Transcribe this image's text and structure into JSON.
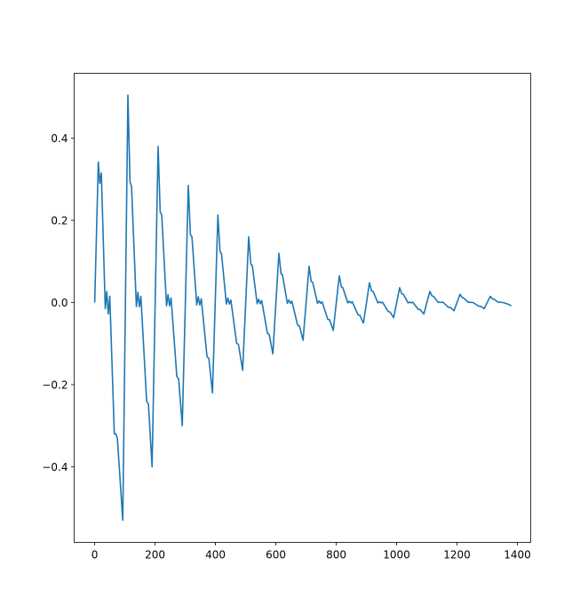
{
  "chart_data": {
    "type": "line",
    "title": "",
    "xlabel": "",
    "ylabel": "",
    "xlim": [
      -68,
      1444
    ],
    "ylim": [
      -0.584,
      0.558
    ],
    "grid": false,
    "xticks": [
      0,
      200,
      400,
      600,
      800,
      1000,
      1200,
      1400
    ],
    "xtick_labels": [
      "0",
      "200",
      "400",
      "600",
      "800",
      "1000",
      "1200",
      "1400"
    ],
    "yticks": [
      -0.4,
      -0.2,
      0.0,
      0.2,
      0.4
    ],
    "ytick_labels": [
      "−0.4",
      "−0.2",
      "0.0",
      "0.2",
      "0.4"
    ],
    "series": [
      {
        "color": "#1f77b4",
        "x": [
          0,
          12,
          17,
          22,
          35,
          40,
          45,
          50,
          65,
          70,
          75,
          93,
          110,
          117,
          122,
          138,
          143,
          148,
          153,
          172,
          178,
          190,
          210,
          217,
          222,
          238,
          243,
          248,
          253,
          272,
          278,
          290,
          310,
          317,
          322,
          338,
          343,
          348,
          353,
          372,
          378,
          390,
          408,
          415,
          420,
          436,
          441,
          446,
          451,
          470,
          476,
          490,
          510,
          517,
          522,
          538,
          543,
          548,
          553,
          572,
          578,
          590,
          610,
          617,
          622,
          638,
          643,
          648,
          653,
          672,
          678,
          690,
          710,
          717,
          722,
          738,
          743,
          748,
          753,
          772,
          778,
          790,
          810,
          817,
          822,
          838,
          843,
          848,
          853,
          872,
          878,
          890,
          910,
          917,
          922,
          938,
          943,
          948,
          953,
          972,
          978,
          990,
          1010,
          1017,
          1022,
          1038,
          1043,
          1048,
          1053,
          1072,
          1078,
          1090,
          1110,
          1117,
          1122,
          1138,
          1143,
          1148,
          1153,
          1172,
          1178,
          1190,
          1210,
          1217,
          1222,
          1238,
          1243,
          1248,
          1253,
          1272,
          1278,
          1290,
          1310,
          1317,
          1322,
          1338,
          1343,
          1348,
          1353,
          1372,
          1380
        ],
        "y": [
          0,
          0.342,
          0.29,
          0.315,
          -0.015,
          0.027,
          -0.028,
          0.015,
          -0.32,
          -0.32,
          -0.33,
          -0.53,
          0.505,
          0.293,
          0.283,
          -0.01,
          0.025,
          -0.01,
          0.015,
          -0.24,
          -0.248,
          -0.4,
          0.38,
          0.22,
          0.213,
          -0.008,
          0.019,
          -0.008,
          0.011,
          -0.18,
          -0.186,
          -0.3,
          0.285,
          0.165,
          0.16,
          -0.006,
          0.014,
          -0.006,
          0.009,
          -0.132,
          -0.136,
          -0.22,
          0.213,
          0.124,
          0.119,
          -0.004,
          0.011,
          -0.004,
          0.006,
          -0.099,
          -0.102,
          -0.165,
          0.16,
          0.093,
          0.09,
          -0.003,
          0.008,
          -0.003,
          0.005,
          -0.075,
          -0.078,
          -0.125,
          0.12,
          0.07,
          0.067,
          -0.002,
          0.006,
          -0.002,
          0.003,
          -0.055,
          -0.057,
          -0.092,
          0.088,
          0.051,
          0.049,
          -0.002,
          0.004,
          -0.002,
          0.002,
          -0.041,
          -0.042,
          -0.068,
          0.065,
          0.038,
          0.036,
          -0.001,
          0.003,
          -0.001,
          0.002,
          -0.03,
          -0.031,
          -0.05,
          0.048,
          0.028,
          0.027,
          -0.001,
          0.002,
          -0.001,
          0.001,
          -0.022,
          -0.023,
          -0.037,
          0.036,
          0.021,
          0.02,
          -0.001,
          0.001,
          -0.001,
          0.001,
          -0.017,
          -0.017,
          -0.028,
          0.027,
          0.016,
          0.015,
          0,
          0.001,
          0,
          0.001,
          -0.012,
          -0.012,
          -0.02,
          0.02,
          0.012,
          0.011,
          0,
          0.001,
          0,
          0,
          -0.009,
          -0.009,
          -0.015,
          0.015,
          0.009,
          0.008,
          0,
          0.001,
          0,
          0,
          -0.005,
          -0.008
        ]
      }
    ]
  }
}
